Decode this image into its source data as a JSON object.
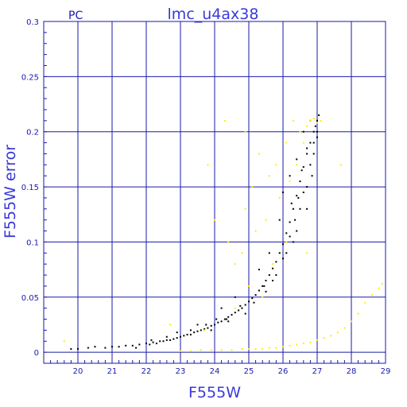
{
  "chart_data": {
    "type": "scatter",
    "title": "lmc_u4ax38",
    "corner_label": "PC",
    "xlabel": "F555W",
    "ylabel": "F555W error",
    "xlim": [
      19,
      29
    ],
    "ylim": [
      -0.01,
      0.3
    ],
    "x_ticks": [
      20,
      21,
      22,
      23,
      24,
      25,
      26,
      27,
      28,
      29
    ],
    "x_tick_labels": [
      "20",
      "21",
      "22",
      "23",
      "24",
      "25",
      "26",
      "27",
      "28",
      "29"
    ],
    "y_ticks": [
      0,
      0.05,
      0.1,
      0.15,
      0.2,
      0.25,
      0.3
    ],
    "y_tick_labels": [
      "0",
      "0.05",
      "0.1",
      "0.15",
      "0.2",
      "0.25",
      "0.3"
    ],
    "grid": true,
    "colors": {
      "grid": "#1a1aa8",
      "series_black": "#000000",
      "series_yellow": "#ffee00"
    },
    "series": [
      {
        "color": "#000000",
        "points": [
          [
            19.8,
            0.003
          ],
          [
            20.0,
            0.003
          ],
          [
            20.3,
            0.004
          ],
          [
            20.5,
            0.005
          ],
          [
            20.8,
            0.004
          ],
          [
            21.0,
            0.005
          ],
          [
            21.2,
            0.005
          ],
          [
            21.4,
            0.006
          ],
          [
            21.6,
            0.006
          ],
          [
            21.8,
            0.007
          ],
          [
            22.0,
            0.008
          ],
          [
            22.1,
            0.007
          ],
          [
            22.2,
            0.009
          ],
          [
            22.3,
            0.008
          ],
          [
            22.4,
            0.01
          ],
          [
            22.5,
            0.01
          ],
          [
            22.6,
            0.011
          ],
          [
            22.7,
            0.011
          ],
          [
            22.8,
            0.012
          ],
          [
            22.9,
            0.013
          ],
          [
            23.0,
            0.014
          ],
          [
            23.1,
            0.015
          ],
          [
            23.2,
            0.016
          ],
          [
            23.3,
            0.016
          ],
          [
            23.4,
            0.018
          ],
          [
            23.5,
            0.019
          ],
          [
            23.6,
            0.02
          ],
          [
            23.7,
            0.021
          ],
          [
            23.8,
            0.022
          ],
          [
            23.9,
            0.024
          ],
          [
            24.0,
            0.025
          ],
          [
            24.1,
            0.027
          ],
          [
            24.2,
            0.028
          ],
          [
            24.3,
            0.03
          ],
          [
            24.4,
            0.032
          ],
          [
            24.5,
            0.034
          ],
          [
            24.6,
            0.036
          ],
          [
            24.7,
            0.038
          ],
          [
            24.8,
            0.04
          ],
          [
            24.9,
            0.043
          ],
          [
            25.0,
            0.046
          ],
          [
            25.1,
            0.049
          ],
          [
            25.2,
            0.052
          ],
          [
            25.3,
            0.056
          ],
          [
            25.4,
            0.06
          ],
          [
            25.5,
            0.065
          ],
          [
            25.6,
            0.07
          ],
          [
            25.7,
            0.076
          ],
          [
            25.8,
            0.082
          ],
          [
            25.9,
            0.09
          ],
          [
            26.0,
            0.098
          ],
          [
            26.1,
            0.108
          ],
          [
            26.2,
            0.118
          ],
          [
            26.3,
            0.13
          ],
          [
            26.4,
            0.142
          ],
          [
            26.5,
            0.155
          ],
          [
            26.6,
            0.168
          ],
          [
            26.7,
            0.18
          ],
          [
            26.8,
            0.19
          ],
          [
            26.9,
            0.2
          ],
          [
            27.0,
            0.21
          ],
          [
            27.05,
            0.215
          ],
          [
            23.5,
            0.025
          ],
          [
            24.2,
            0.04
          ],
          [
            24.6,
            0.05
          ],
          [
            25.0,
            0.06
          ],
          [
            25.3,
            0.075
          ],
          [
            25.6,
            0.09
          ],
          [
            25.9,
            0.12
          ],
          [
            26.0,
            0.145
          ],
          [
            26.2,
            0.16
          ],
          [
            26.4,
            0.175
          ],
          [
            26.6,
            0.2
          ],
          [
            26.8,
            0.21
          ],
          [
            26.3,
            0.1
          ],
          [
            26.5,
            0.13
          ],
          [
            26.7,
            0.15
          ],
          [
            26.9,
            0.18
          ],
          [
            25.8,
            0.07
          ],
          [
            25.5,
            0.055
          ],
          [
            24.9,
            0.035
          ],
          [
            24.4,
            0.028
          ],
          [
            23.9,
            0.02
          ],
          [
            22.9,
            0.018
          ],
          [
            21.7,
            0.004
          ],
          [
            26.1,
            0.09
          ],
          [
            26.4,
            0.11
          ],
          [
            26.7,
            0.13
          ],
          [
            26.85,
            0.16
          ],
          [
            27.0,
            0.195
          ],
          [
            26.95,
            0.205
          ],
          [
            27.0,
            0.2
          ],
          [
            26.9,
            0.19
          ],
          [
            26.8,
            0.17
          ],
          [
            26.6,
            0.145
          ],
          [
            26.55,
            0.165
          ],
          [
            26.7,
            0.185
          ],
          [
            26.35,
            0.12
          ],
          [
            26.2,
            0.105
          ],
          [
            26.25,
            0.135
          ],
          [
            26.45,
            0.14
          ],
          [
            26.0,
            0.085
          ],
          [
            25.7,
            0.065
          ],
          [
            25.45,
            0.06
          ],
          [
            25.15,
            0.045
          ],
          [
            24.75,
            0.042
          ],
          [
            24.35,
            0.03
          ],
          [
            24.05,
            0.03
          ],
          [
            23.75,
            0.025
          ],
          [
            23.3,
            0.02
          ],
          [
            22.6,
            0.014
          ],
          [
            22.15,
            0.011
          ]
        ]
      },
      {
        "color": "#ffee00",
        "points": [
          [
            23.0,
            0.001
          ],
          [
            23.3,
            0.001
          ],
          [
            23.6,
            0.002
          ],
          [
            23.9,
            0.002
          ],
          [
            24.2,
            0.002
          ],
          [
            24.5,
            0.002
          ],
          [
            24.8,
            0.003
          ],
          [
            25.0,
            0.003
          ],
          [
            25.2,
            0.003
          ],
          [
            25.4,
            0.003
          ],
          [
            25.6,
            0.004
          ],
          [
            25.8,
            0.004
          ],
          [
            26.0,
            0.005
          ],
          [
            26.2,
            0.006
          ],
          [
            26.4,
            0.007
          ],
          [
            26.6,
            0.008
          ],
          [
            26.8,
            0.009
          ],
          [
            27.0,
            0.011
          ],
          [
            27.2,
            0.013
          ],
          [
            27.4,
            0.015
          ],
          [
            27.6,
            0.018
          ],
          [
            27.8,
            0.022
          ],
          [
            28.0,
            0.028
          ],
          [
            28.2,
            0.035
          ],
          [
            28.4,
            0.045
          ],
          [
            28.6,
            0.052
          ],
          [
            28.8,
            0.058
          ],
          [
            28.9,
            0.062
          ],
          [
            24.3,
            0.21
          ],
          [
            24.9,
            0.2
          ],
          [
            25.3,
            0.18
          ],
          [
            25.1,
            0.15
          ],
          [
            25.6,
            0.16
          ],
          [
            25.8,
            0.17
          ],
          [
            26.1,
            0.19
          ],
          [
            26.3,
            0.21
          ],
          [
            26.5,
            0.2
          ],
          [
            26.7,
            0.205
          ],
          [
            26.8,
            0.21
          ],
          [
            26.9,
            0.212
          ],
          [
            27.0,
            0.208
          ],
          [
            27.1,
            0.21
          ],
          [
            26.6,
            0.19
          ],
          [
            26.4,
            0.17
          ],
          [
            26.2,
            0.155
          ],
          [
            25.9,
            0.14
          ],
          [
            25.5,
            0.12
          ],
          [
            25.2,
            0.11
          ],
          [
            24.8,
            0.09
          ],
          [
            24.6,
            0.08
          ],
          [
            24.4,
            0.1
          ],
          [
            23.8,
            0.17
          ],
          [
            24.0,
            0.12
          ],
          [
            25.0,
            0.06
          ],
          [
            25.4,
            0.05
          ],
          [
            24.6,
            0.04
          ],
          [
            23.7,
            0.02
          ],
          [
            22.7,
            0.025
          ],
          [
            19.6,
            0.01
          ],
          [
            27.7,
            0.17
          ],
          [
            26.7,
            0.09
          ],
          [
            25.7,
            0.08
          ],
          [
            26.1,
            0.1
          ],
          [
            24.9,
            0.13
          ]
        ]
      }
    ]
  }
}
